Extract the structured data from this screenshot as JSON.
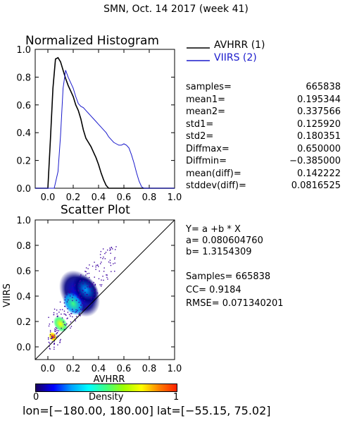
{
  "header": {
    "title": "SMN,  Oct. 14 2017 (week 41)"
  },
  "histogram": {
    "title": "Normalized Histogram",
    "legend": [
      {
        "label": "AVHRR (1)",
        "color": "#000000"
      },
      {
        "label": "VIIRS (2)",
        "color": "#1a1acc"
      }
    ],
    "x_ticks": [
      "0.0",
      "0.2",
      "0.4",
      "0.6",
      "0.8",
      "1.0"
    ],
    "y_ticks": [
      "0.0",
      "0.2",
      "0.4",
      "0.6",
      "0.8",
      "1.0"
    ]
  },
  "stats": [
    {
      "label": "samples=",
      "value": "665838"
    },
    {
      "label": "mean1=",
      "value": "0.195344"
    },
    {
      "label": "mean2=",
      "value": "0.337566"
    },
    {
      "label": "std1=",
      "value": "0.125920"
    },
    {
      "label": "std2=",
      "value": "0.180351"
    },
    {
      "label": "Diffmax=",
      "value": "0.650000"
    },
    {
      "label": "Diffmin=",
      "value": "−0.385000"
    },
    {
      "label": "mean(diff)=",
      "value": "0.142222"
    },
    {
      "label": "stddev(diff)=",
      "value": "0.0816525"
    }
  ],
  "scatter": {
    "title": "Scatter Plot",
    "xlabel": "AVHRR",
    "ylabel": "VIIRS",
    "x_ticks": [
      "0.0",
      "0.2",
      "0.4",
      "0.6",
      "0.8",
      "1.0"
    ],
    "y_ticks": [
      "0.0",
      "0.2",
      "0.4",
      "0.6",
      "0.8",
      "1.0"
    ]
  },
  "regression": {
    "equation": "Y= a +b * X",
    "a_line": "a= 0.080604760",
    "b_line": "b= 1.3154309",
    "samples_line": "Samples= 665838",
    "cc_line": "CC=  0.9184",
    "rmse_line": "RMSE= 0.071340201"
  },
  "colorbar": {
    "label": "Density",
    "min_label": "0",
    "max_label": "1"
  },
  "footer": {
    "coords": "lon=[−180.00, 180.00] lat=[−55.15, 75.02]"
  },
  "chart_data": [
    {
      "type": "line",
      "title": "Normalized Histogram",
      "xlim": [
        -0.1,
        1.0
      ],
      "ylim": [
        0.0,
        1.0
      ],
      "grid": false,
      "legend_position": "top-right, outside plot",
      "series": [
        {
          "name": "AVHRR (1)",
          "color": "#000000",
          "x": [
            -0.1,
            0.0,
            0.02,
            0.04,
            0.06,
            0.08,
            0.1,
            0.12,
            0.14,
            0.16,
            0.18,
            0.2,
            0.22,
            0.24,
            0.26,
            0.28,
            0.3,
            0.32,
            0.34,
            0.36,
            0.38,
            0.4,
            0.42,
            0.44,
            0.46,
            0.48,
            0.5,
            1.0
          ],
          "y": [
            0.0,
            0.0,
            0.35,
            0.72,
            0.93,
            0.94,
            0.91,
            0.85,
            0.79,
            0.74,
            0.7,
            0.66,
            0.6,
            0.56,
            0.5,
            0.42,
            0.36,
            0.33,
            0.3,
            0.26,
            0.22,
            0.17,
            0.11,
            0.06,
            0.02,
            0.0,
            0.0,
            0.0
          ]
        },
        {
          "name": "VIIRS (2)",
          "color": "#1a1acc",
          "x": [
            -0.1,
            0.05,
            0.08,
            0.1,
            0.12,
            0.14,
            0.16,
            0.18,
            0.2,
            0.22,
            0.24,
            0.26,
            0.28,
            0.3,
            0.32,
            0.34,
            0.36,
            0.38,
            0.4,
            0.42,
            0.44,
            0.46,
            0.48,
            0.5,
            0.52,
            0.54,
            0.56,
            0.58,
            0.6,
            0.62,
            0.64,
            0.66,
            0.68,
            0.7,
            0.72,
            0.74,
            0.76,
            1.0
          ],
          "y": [
            0.0,
            0.0,
            0.12,
            0.38,
            0.72,
            0.85,
            0.8,
            0.76,
            0.72,
            0.66,
            0.61,
            0.59,
            0.58,
            0.56,
            0.54,
            0.52,
            0.5,
            0.48,
            0.46,
            0.44,
            0.42,
            0.4,
            0.37,
            0.35,
            0.33,
            0.32,
            0.31,
            0.31,
            0.32,
            0.31,
            0.29,
            0.24,
            0.18,
            0.11,
            0.05,
            0.01,
            0.0,
            0.0
          ]
        }
      ]
    },
    {
      "type": "scatter",
      "title": "Scatter Plot",
      "xlabel": "AVHRR",
      "ylabel": "VIIRS",
      "xlim": [
        -0.1,
        1.0
      ],
      "ylim": [
        -0.1,
        1.0
      ],
      "grid": false,
      "diagonal_line": [
        [
          -0.1,
          -0.1
        ],
        [
          1.0,
          1.0
        ]
      ],
      "density_colormap": [
        "#000080",
        "#0000ff",
        "#00a0ff",
        "#00ffff",
        "#40ff80",
        "#a0ff00",
        "#ffff00",
        "#ff8000",
        "#ff2000"
      ],
      "density_blobs": [
        {
          "x": 0.25,
          "y": 0.42,
          "sx": 0.14,
          "sy": 0.2,
          "weight": 0.15
        },
        {
          "x": 0.3,
          "y": 0.45,
          "sx": 0.09,
          "sy": 0.13,
          "weight": 0.3
        },
        {
          "x": 0.2,
          "y": 0.34,
          "sx": 0.07,
          "sy": 0.1,
          "weight": 0.55
        },
        {
          "x": 0.1,
          "y": 0.18,
          "sx": 0.05,
          "sy": 0.07,
          "weight": 0.8
        },
        {
          "x": 0.04,
          "y": 0.08,
          "sx": 0.03,
          "sy": 0.04,
          "weight": 1.0
        }
      ]
    }
  ]
}
